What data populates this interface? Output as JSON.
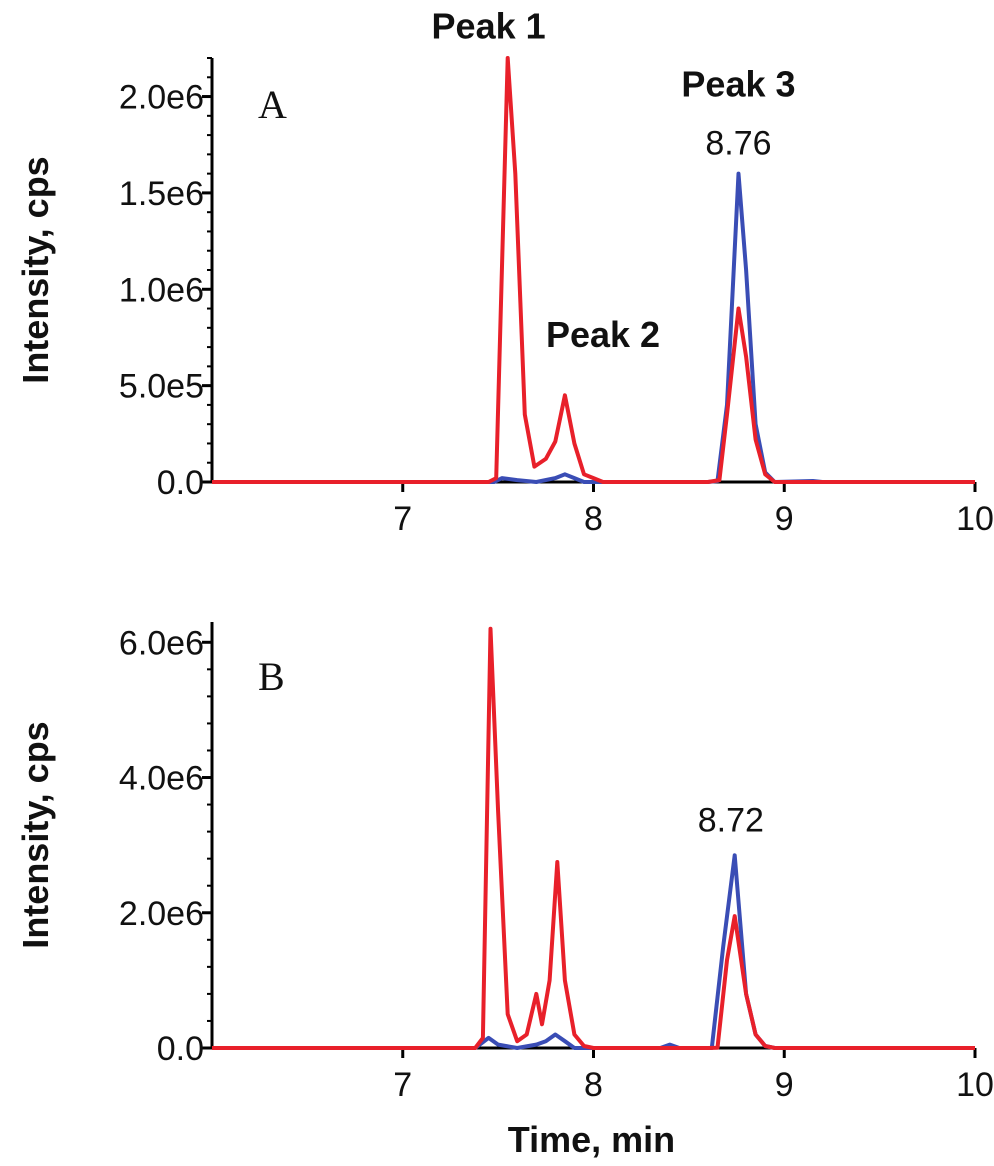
{
  "chart_data": [
    {
      "type": "line",
      "panel_label": "A",
      "xlabel": "",
      "ylabel": "Intensity, cps",
      "xlim": [
        6.0,
        10.0
      ],
      "ylim": [
        0,
        2200000
      ],
      "x_ticks": [
        7,
        8,
        9,
        10
      ],
      "x_tick_labels": [
        "7",
        "8",
        "9",
        "10"
      ],
      "y_ticks": [
        0,
        500000,
        1000000,
        1500000,
        2000000
      ],
      "y_tick_labels": [
        "0.0",
        "5.0e5",
        "1.0e6",
        "1.5e6",
        "2.0e6"
      ],
      "colors": {
        "red": "#e8202a",
        "blue": "#3a4db5"
      },
      "series": [
        {
          "color": "red",
          "points": [
            [
              6.0,
              0
            ],
            [
              7.45,
              0
            ],
            [
              7.49,
              20000
            ],
            [
              7.55,
              2200000
            ],
            [
              7.59,
              1600000
            ],
            [
              7.64,
              350000
            ],
            [
              7.69,
              80000
            ],
            [
              7.75,
              120000
            ],
            [
              7.8,
              210000
            ],
            [
              7.85,
              450000
            ],
            [
              7.9,
              200000
            ],
            [
              7.95,
              40000
            ],
            [
              8.0,
              20000
            ],
            [
              8.05,
              0
            ],
            [
              8.6,
              0
            ],
            [
              8.66,
              10000
            ],
            [
              8.7,
              350000
            ],
            [
              8.76,
              900000
            ],
            [
              8.8,
              650000
            ],
            [
              8.85,
              220000
            ],
            [
              8.9,
              40000
            ],
            [
              8.95,
              0
            ],
            [
              10.0,
              0
            ]
          ]
        },
        {
          "color": "blue",
          "points": [
            [
              6.0,
              0
            ],
            [
              7.48,
              0
            ],
            [
              7.52,
              20000
            ],
            [
              7.6,
              10000
            ],
            [
              7.7,
              0
            ],
            [
              7.8,
              20000
            ],
            [
              7.85,
              40000
            ],
            [
              7.9,
              20000
            ],
            [
              7.95,
              0
            ],
            [
              8.6,
              0
            ],
            [
              8.65,
              5000
            ],
            [
              8.7,
              400000
            ],
            [
              8.76,
              1600000
            ],
            [
              8.8,
              1100000
            ],
            [
              8.85,
              300000
            ],
            [
              8.9,
              50000
            ],
            [
              8.95,
              0
            ],
            [
              9.15,
              5000
            ],
            [
              9.2,
              0
            ],
            [
              10.0,
              0
            ]
          ]
        }
      ],
      "annotations": [
        {
          "text": "Peak 1",
          "x": 7.45,
          "y": 2300000,
          "bold": true
        },
        {
          "text": "Peak 2",
          "x": 8.05,
          "y": 700000,
          "bold": true
        },
        {
          "text": "Peak 3",
          "x": 8.76,
          "y": 2000000,
          "bold": true
        },
        {
          "text": "8.76",
          "x": 8.76,
          "y": 1700000,
          "bold": false
        }
      ]
    },
    {
      "type": "line",
      "panel_label": "B",
      "xlabel": "Time, min",
      "ylabel": "Intensity, cps",
      "xlim": [
        6.0,
        10.0
      ],
      "ylim": [
        0,
        6300000
      ],
      "x_ticks": [
        7,
        8,
        9,
        10
      ],
      "x_tick_labels": [
        "7",
        "8",
        "9",
        "10"
      ],
      "y_ticks": [
        0,
        2000000,
        4000000,
        6000000
      ],
      "y_tick_labels": [
        "0.0",
        "2.0e6",
        "4.0e6",
        "6.0e6"
      ],
      "colors": {
        "red": "#e8202a",
        "blue": "#3a4db5"
      },
      "series": [
        {
          "color": "red",
          "points": [
            [
              6.0,
              0
            ],
            [
              7.38,
              0
            ],
            [
              7.42,
              150000
            ],
            [
              7.46,
              6200000
            ],
            [
              7.5,
              3500000
            ],
            [
              7.55,
              500000
            ],
            [
              7.6,
              100000
            ],
            [
              7.65,
              200000
            ],
            [
              7.7,
              800000
            ],
            [
              7.73,
              350000
            ],
            [
              7.77,
              1000000
            ],
            [
              7.81,
              2750000
            ],
            [
              7.85,
              1000000
            ],
            [
              7.9,
              200000
            ],
            [
              7.95,
              30000
            ],
            [
              8.0,
              0
            ],
            [
              8.6,
              0
            ],
            [
              8.65,
              5000
            ],
            [
              8.7,
              1300000
            ],
            [
              8.74,
              1950000
            ],
            [
              8.8,
              800000
            ],
            [
              8.85,
              200000
            ],
            [
              8.9,
              30000
            ],
            [
              8.95,
              0
            ],
            [
              10.0,
              0
            ]
          ]
        },
        {
          "color": "blue",
          "points": [
            [
              6.0,
              0
            ],
            [
              7.38,
              0
            ],
            [
              7.45,
              150000
            ],
            [
              7.5,
              50000
            ],
            [
              7.6,
              0
            ],
            [
              7.7,
              50000
            ],
            [
              7.75,
              100000
            ],
            [
              7.8,
              200000
            ],
            [
              7.85,
              100000
            ],
            [
              7.9,
              0
            ],
            [
              8.35,
              0
            ],
            [
              8.4,
              50000
            ],
            [
              8.45,
              0
            ],
            [
              8.62,
              0
            ],
            [
              8.68,
              1500000
            ],
            [
              8.74,
              2850000
            ],
            [
              8.8,
              800000
            ],
            [
              8.85,
              200000
            ],
            [
              8.9,
              30000
            ],
            [
              8.95,
              0
            ],
            [
              10.0,
              0
            ]
          ]
        }
      ],
      "annotations": [
        {
          "text": "8.72",
          "x": 8.72,
          "y": 3200000,
          "bold": false
        }
      ]
    }
  ]
}
